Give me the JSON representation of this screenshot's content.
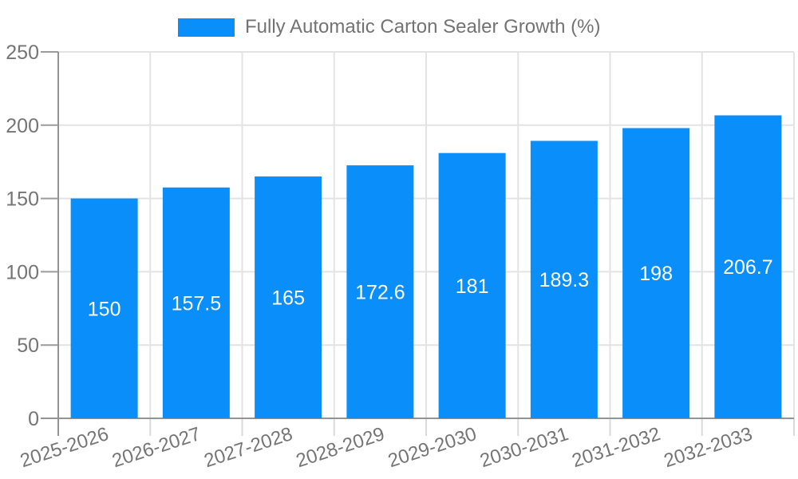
{
  "legend": {
    "label": "Fully Automatic Carton Sealer Growth (%)"
  },
  "chart_data": {
    "type": "bar",
    "title": "",
    "categories": [
      "2025-2026",
      "2026-2027",
      "2027-2028",
      "2028-2029",
      "2029-2030",
      "2030-2031",
      "2031-2032",
      "2032-2033"
    ],
    "series": [
      {
        "name": "Fully Automatic Carton Sealer Growth (%)",
        "values": [
          150,
          157.5,
          165,
          172.6,
          181,
          189.3,
          198,
          206.7
        ]
      }
    ],
    "bar_labels": [
      "150",
      "157.5",
      "165",
      "172.6",
      "181",
      "189.3",
      "198",
      "206.7"
    ],
    "xlabel": "",
    "ylabel": "",
    "ylim": [
      0,
      250
    ],
    "yticks": [
      0,
      50,
      100,
      150,
      200,
      250
    ],
    "ytick_labels": [
      "0",
      "50",
      "100",
      "150",
      "200",
      "250"
    ],
    "grid": true,
    "legend_position": "top",
    "x_label_rotation_deg": -18,
    "colors": {
      "bar": "#0A8EF9",
      "grid": "#E3E3E3",
      "axis": "#949494",
      "y_tick_mark": "#9B9B9B",
      "x_tick_mark": "#DADADA",
      "tick_text": "#757575",
      "bar_label_text": "#FFFFFF",
      "legend_text": "#737373"
    }
  }
}
